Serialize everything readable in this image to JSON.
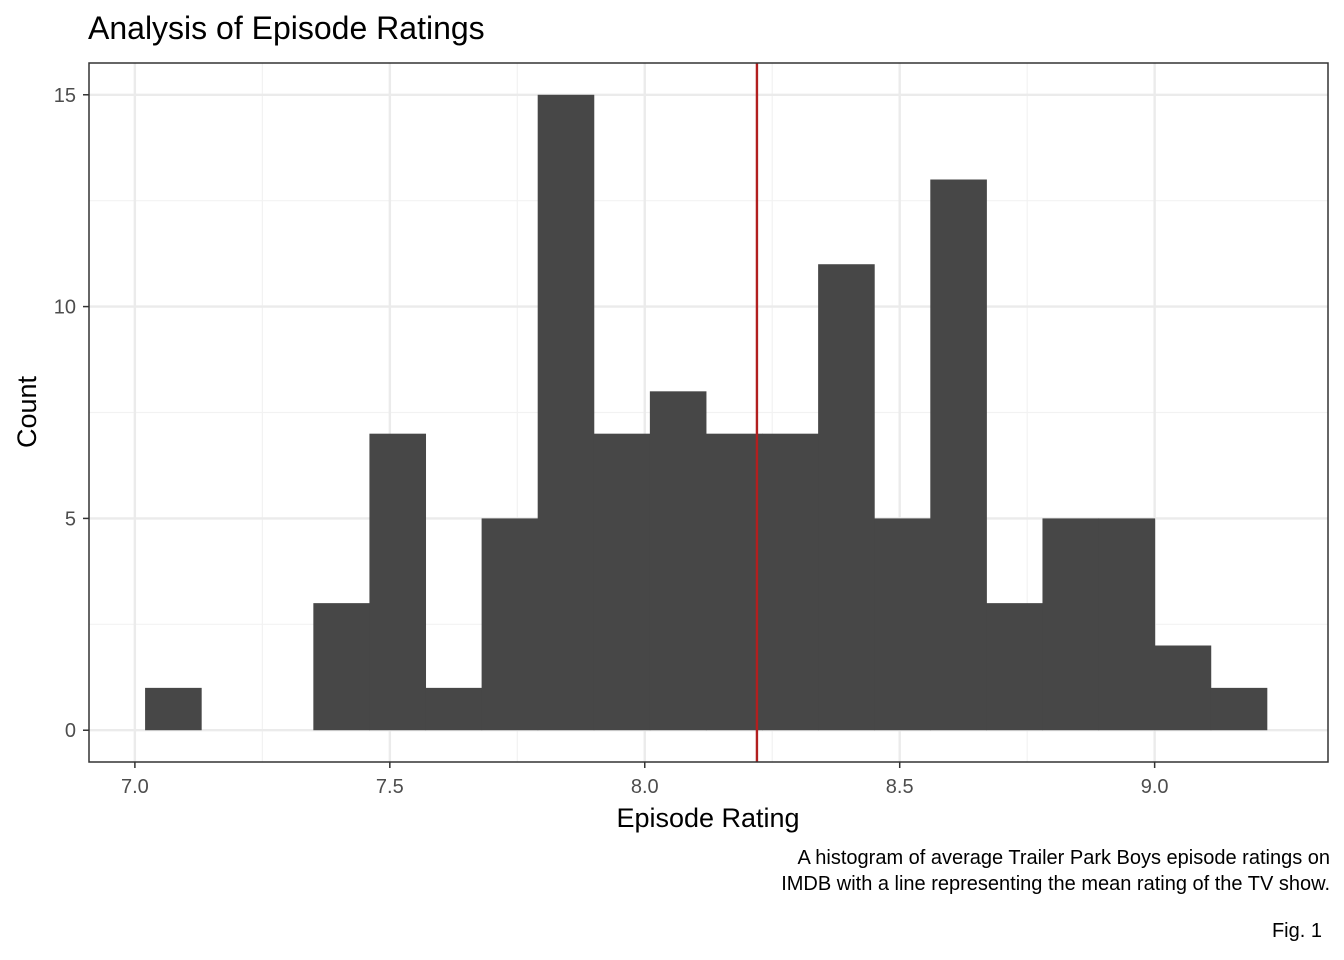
{
  "chart_data": {
    "type": "bar",
    "title": "Analysis of Episode Ratings",
    "xlabel": "Episode Rating",
    "ylabel": "Count",
    "xlim": [
      6.91,
      9.34
    ],
    "ylim": [
      -0.75,
      15.75
    ],
    "xticks": [
      7.0,
      7.5,
      8.0,
      8.5,
      9.0
    ],
    "xtick_labels": [
      "7.0",
      "7.5",
      "8.0",
      "8.5",
      "9.0"
    ],
    "yticks": [
      0,
      5,
      10,
      15
    ],
    "ytick_labels": [
      "0",
      "5",
      "10",
      "15"
    ],
    "grid": true,
    "bins": [
      {
        "start": 7.02,
        "end": 7.13,
        "count": 1
      },
      {
        "start": 7.13,
        "end": 7.24,
        "count": 0
      },
      {
        "start": 7.24,
        "end": 7.35,
        "count": 0
      },
      {
        "start": 7.35,
        "end": 7.46,
        "count": 3
      },
      {
        "start": 7.46,
        "end": 7.57,
        "count": 7
      },
      {
        "start": 7.57,
        "end": 7.68,
        "count": 1
      },
      {
        "start": 7.68,
        "end": 7.79,
        "count": 5
      },
      {
        "start": 7.79,
        "end": 7.9,
        "count": 15
      },
      {
        "start": 7.9,
        "end": 8.01,
        "count": 7
      },
      {
        "start": 8.01,
        "end": 8.12,
        "count": 8
      },
      {
        "start": 8.12,
        "end": 8.23,
        "count": 7
      },
      {
        "start": 8.23,
        "end": 8.34,
        "count": 7
      },
      {
        "start": 8.34,
        "end": 8.45,
        "count": 11
      },
      {
        "start": 8.45,
        "end": 8.56,
        "count": 5
      },
      {
        "start": 8.56,
        "end": 8.67,
        "count": 13
      },
      {
        "start": 8.67,
        "end": 8.78,
        "count": 3
      },
      {
        "start": 8.78,
        "end": 8.89,
        "count": 5
      },
      {
        "start": 8.89,
        "end": 9.0,
        "count": 5
      },
      {
        "start": 9.0,
        "end": 9.11,
        "count": 2
      },
      {
        "start": 9.11,
        "end": 9.22,
        "count": 1
      }
    ],
    "mean_line": 8.22,
    "colors": {
      "bar": "#474747",
      "mean_line": "#b21f1f",
      "grid_major": "#ebebeb",
      "grid_minor": "#f2f2f2",
      "panel_border": "#333333",
      "axis_text": "#4d4d4d"
    }
  },
  "caption": {
    "line1": "A histogram of average Trailer Park Boys episode ratings on",
    "line2": "IMDB with a line representing the mean rating of the TV show."
  },
  "figure_label": "Fig. 1"
}
